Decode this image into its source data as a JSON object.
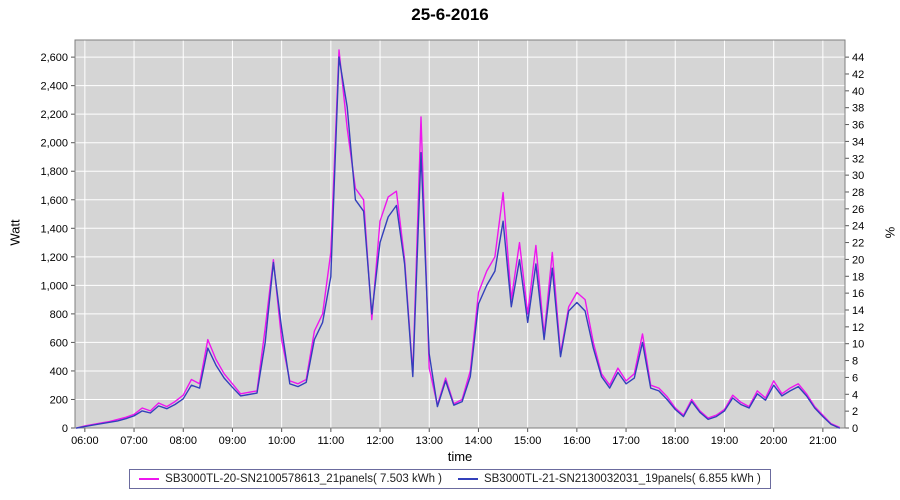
{
  "chart_data": {
    "type": "line",
    "title": "25-6-2016",
    "xlabel": "time",
    "ylabel": "Watt",
    "y2label": "%",
    "plot_bg": "#d5d5d5",
    "grid_color": "#ffffff",
    "grid": true,
    "legend_position": "bottom",
    "x_range_hours": [
      5.8,
      21.45
    ],
    "x_ticks": [
      "06:00",
      "07:00",
      "08:00",
      "09:00",
      "10:00",
      "11:00",
      "12:00",
      "13:00",
      "14:00",
      "15:00",
      "16:00",
      "17:00",
      "18:00",
      "19:00",
      "20:00",
      "21:00"
    ],
    "y_left": {
      "min": 0,
      "max": 2600,
      "step": 200,
      "plot_max": 2720
    },
    "y_right": {
      "min": 0,
      "max": 44,
      "step": 2
    },
    "times": [
      "05:50",
      "06:00",
      "06:10",
      "06:20",
      "06:30",
      "06:40",
      "06:50",
      "07:00",
      "07:10",
      "07:20",
      "07:30",
      "07:40",
      "07:50",
      "08:00",
      "08:10",
      "08:20",
      "08:30",
      "08:40",
      "08:50",
      "09:00",
      "09:10",
      "09:20",
      "09:30",
      "09:40",
      "09:50",
      "10:00",
      "10:10",
      "10:20",
      "10:30",
      "10:40",
      "10:50",
      "11:00",
      "11:10",
      "11:20",
      "11:30",
      "11:40",
      "11:50",
      "12:00",
      "12:10",
      "12:20",
      "12:30",
      "12:40",
      "12:50",
      "13:00",
      "13:10",
      "13:20",
      "13:30",
      "13:40",
      "13:50",
      "14:00",
      "14:10",
      "14:20",
      "14:30",
      "14:40",
      "14:50",
      "15:00",
      "15:10",
      "15:20",
      "15:30",
      "15:40",
      "15:50",
      "16:00",
      "16:10",
      "16:20",
      "16:30",
      "16:40",
      "16:50",
      "17:00",
      "17:10",
      "17:20",
      "17:30",
      "17:40",
      "17:50",
      "18:00",
      "18:10",
      "18:20",
      "18:30",
      "18:40",
      "18:50",
      "19:00",
      "19:10",
      "19:20",
      "19:30",
      "19:40",
      "19:50",
      "20:00",
      "20:10",
      "20:20",
      "20:30",
      "20:40",
      "20:50",
      "21:00",
      "21:10",
      "21:20"
    ],
    "series": [
      {
        "name": "SB3000TL-20-SN2100578613_21panels( 7.503 kWh )",
        "energy_kwh": 7.503,
        "color": "#ee16ee",
        "values": [
          0,
          15,
          25,
          35,
          45,
          60,
          75,
          95,
          140,
          120,
          175,
          150,
          185,
          230,
          340,
          310,
          620,
          480,
          380,
          310,
          240,
          250,
          260,
          700,
          1180,
          620,
          330,
          310,
          340,
          680,
          800,
          1230,
          2650,
          2100,
          1680,
          1600,
          760,
          1450,
          1620,
          1660,
          1180,
          380,
          2180,
          420,
          160,
          350,
          170,
          200,
          400,
          950,
          1100,
          1200,
          1650,
          900,
          1300,
          800,
          1280,
          650,
          1230,
          520,
          850,
          950,
          900,
          600,
          380,
          300,
          420,
          330,
          380,
          660,
          300,
          280,
          220,
          140,
          90,
          200,
          120,
          70,
          90,
          130,
          230,
          180,
          150,
          260,
          210,
          330,
          240,
          280,
          310,
          240,
          150,
          90,
          30,
          5
        ]
      },
      {
        "name": "SB3000TL-21-SN2130032031_19panels( 6.855 kWh )",
        "energy_kwh": 6.855,
        "color": "#3340bb",
        "values": [
          0,
          10,
          20,
          30,
          40,
          50,
          65,
          85,
          120,
          105,
          155,
          135,
          165,
          205,
          300,
          280,
          560,
          440,
          350,
          285,
          225,
          235,
          245,
          600,
          1160,
          700,
          310,
          290,
          320,
          620,
          740,
          1060,
          2600,
          2250,
          1600,
          1520,
          800,
          1300,
          1480,
          1560,
          1150,
          360,
          1930,
          520,
          150,
          330,
          160,
          185,
          360,
          870,
          1000,
          1100,
          1450,
          850,
          1180,
          740,
          1150,
          620,
          1120,
          500,
          820,
          880,
          820,
          560,
          360,
          280,
          390,
          310,
          350,
          600,
          280,
          260,
          200,
          130,
          80,
          185,
          110,
          60,
          80,
          120,
          210,
          165,
          140,
          240,
          195,
          300,
          225,
          260,
          290,
          225,
          140,
          80,
          25,
          0
        ]
      }
    ]
  }
}
